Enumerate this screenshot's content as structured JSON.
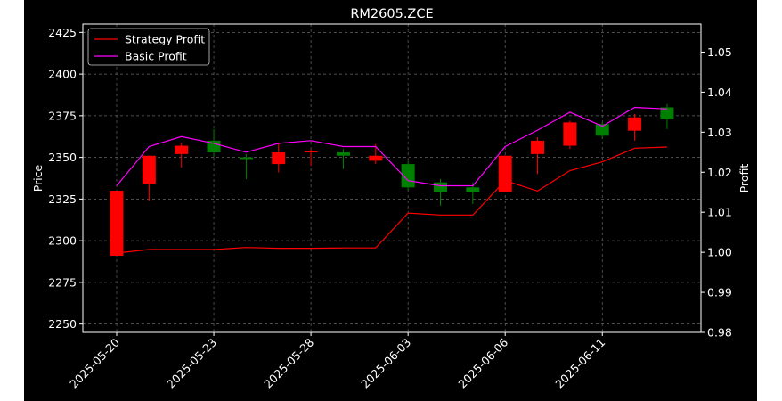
{
  "chart_data": {
    "type": "candlestick",
    "title": "RM2605.ZCE",
    "xlabel": "",
    "ylabel_left": "Price",
    "ylabel_right": "Profit",
    "ylim_left": [
      2245,
      2430
    ],
    "ylim_right": [
      0.98,
      1.057
    ],
    "yticks_left": [
      2250,
      2275,
      2300,
      2325,
      2350,
      2375,
      2400,
      2425
    ],
    "yticks_right": [
      "0.98",
      "0.99",
      "1.00",
      "1.01",
      "1.02",
      "1.03",
      "1.04",
      "1.05"
    ],
    "xtick_labels": [
      "2025-05-20",
      "2025-05-23",
      "2025-05-28",
      "2025-06-03",
      "2025-06-06",
      "2025-06-11"
    ],
    "xtick_indices": [
      0,
      3,
      6,
      9,
      12,
      15
    ],
    "grid": true,
    "legend_position": "top-left",
    "colors": {
      "up": "#008000",
      "down": "#ff0000",
      "strategy": "#ff0000",
      "basic": "#ff00ff",
      "background": "#000000",
      "text": "#ffffff"
    },
    "candles": [
      {
        "open": 2330,
        "high": 2330,
        "low": 2291,
        "close": 2291
      },
      {
        "open": 2351,
        "high": 2351,
        "low": 2324,
        "close": 2334
      },
      {
        "open": 2357,
        "high": 2359,
        "low": 2344,
        "close": 2352
      },
      {
        "open": 2353,
        "high": 2367,
        "low": 2350,
        "close": 2360
      },
      {
        "open": 2349,
        "high": 2352,
        "low": 2337,
        "close": 2350
      },
      {
        "open": 2353,
        "high": 2359,
        "low": 2341,
        "close": 2346
      },
      {
        "open": 2354,
        "high": 2355,
        "low": 2345,
        "close": 2353
      },
      {
        "open": 2351,
        "high": 2355,
        "low": 2343,
        "close": 2353
      },
      {
        "open": 2351,
        "high": 2358,
        "low": 2346,
        "close": 2348
      },
      {
        "open": 2332,
        "high": 2348,
        "low": 2330,
        "close": 2346
      },
      {
        "open": 2329,
        "high": 2337,
        "low": 2321,
        "close": 2335
      },
      {
        "open": 2329,
        "high": 2335,
        "low": 2322,
        "close": 2332
      },
      {
        "open": 2351,
        "high": 2351,
        "low": 2329,
        "close": 2329
      },
      {
        "open": 2360,
        "high": 2362,
        "low": 2340,
        "close": 2352
      },
      {
        "open": 2371,
        "high": 2372,
        "low": 2355,
        "close": 2357
      },
      {
        "open": 2363,
        "high": 2371,
        "low": 2361,
        "close": 2370
      },
      {
        "open": 2374,
        "high": 2376,
        "low": 2360,
        "close": 2366
      },
      {
        "open": 2373,
        "high": 2382,
        "low": 2367,
        "close": 2380
      }
    ],
    "series": [
      {
        "name": "Strategy Profit",
        "values": [
          0.9998,
          1.0007,
          1.0007,
          1.0007,
          1.0012,
          1.001,
          1.001,
          1.0011,
          1.0011,
          1.0098,
          1.0093,
          1.0093,
          1.0179,
          1.0153,
          1.0204,
          1.0226,
          1.026,
          1.0263
        ]
      },
      {
        "name": "Basic Profit",
        "values": [
          1.0166,
          1.0264,
          1.0289,
          1.0272,
          1.025,
          1.0272,
          1.0279,
          1.0264,
          1.0264,
          1.0179,
          1.0166,
          1.0166,
          1.0264,
          1.0305,
          1.035,
          1.0315,
          1.0362,
          1.0358
        ]
      }
    ]
  }
}
